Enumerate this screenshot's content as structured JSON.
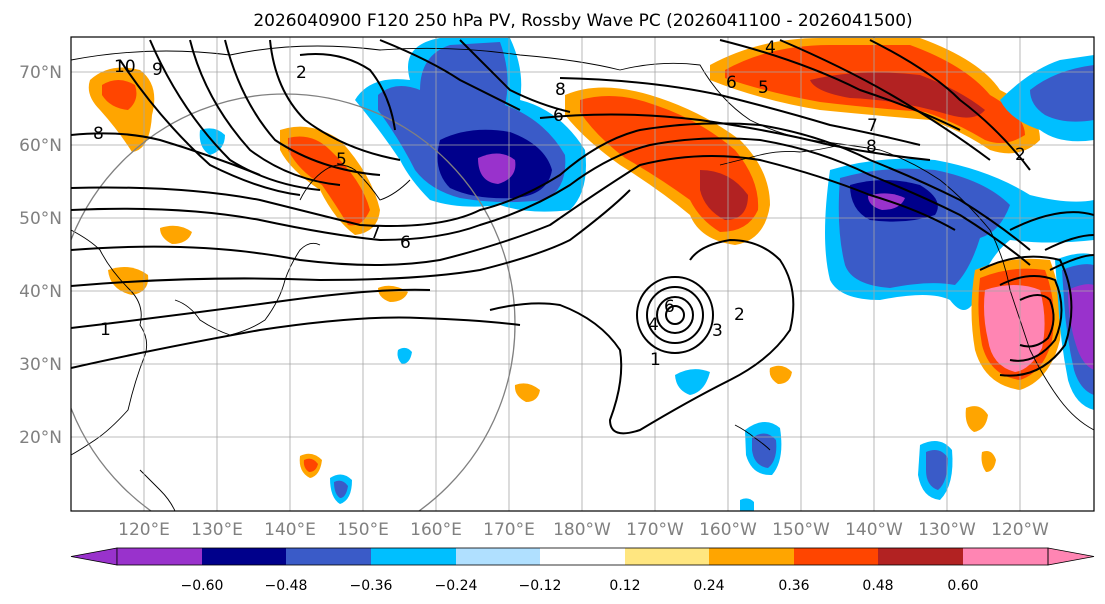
{
  "title": "2026040900 F120 250 hPa PV, Rossby Wave PC (2026041100 - 2026041500)",
  "map": {
    "lat_labels": [
      "70°N",
      "60°N",
      "50°N",
      "40°N",
      "30°N",
      "20°N"
    ],
    "lon_labels": [
      "120°E",
      "130°E",
      "140°E",
      "150°E",
      "160°E",
      "170°E",
      "180°W",
      "170°W",
      "160°W",
      "150°W",
      "140°W",
      "130°W",
      "120°W"
    ],
    "contour_labels": [
      {
        "id": "c-10",
        "text": "10"
      },
      {
        "id": "c-9",
        "text": "9"
      },
      {
        "id": "c-2a",
        "text": "2"
      },
      {
        "id": "c-8a",
        "text": "8"
      },
      {
        "id": "c-8b",
        "text": "8"
      },
      {
        "id": "c-6a",
        "text": "6"
      },
      {
        "id": "c-4a",
        "text": "4"
      },
      {
        "id": "c-5a",
        "text": "5"
      },
      {
        "id": "c-6b",
        "text": "6"
      },
      {
        "id": "c-5b",
        "text": "5"
      },
      {
        "id": "c-7a",
        "text": "7"
      },
      {
        "id": "c-6c",
        "text": "6"
      },
      {
        "id": "c-7b",
        "text": "7"
      },
      {
        "id": "c-8c",
        "text": "8"
      },
      {
        "id": "c-1a",
        "text": "1"
      },
      {
        "id": "c-6d",
        "text": "6"
      },
      {
        "id": "c-4b",
        "text": "4"
      },
      {
        "id": "c-3a",
        "text": "3"
      },
      {
        "id": "c-2b",
        "text": "2"
      },
      {
        "id": "c-1b",
        "text": "1"
      },
      {
        "id": "c-2c",
        "text": "2"
      }
    ]
  },
  "colorbar": {
    "ticks": [
      "−0.60",
      "−0.48",
      "−0.36",
      "−0.24",
      "−0.12",
      "0.12",
      "0.24",
      "0.36",
      "0.48",
      "0.60"
    ],
    "colors": [
      "#9932CC",
      "#00008B",
      "#3A5BC8",
      "#00BFFF",
      "#B0E0FF",
      "#FFFFFF",
      "#FFE680",
      "#FFA500",
      "#FF4500",
      "#B22222",
      "#FF85B3"
    ]
  }
}
